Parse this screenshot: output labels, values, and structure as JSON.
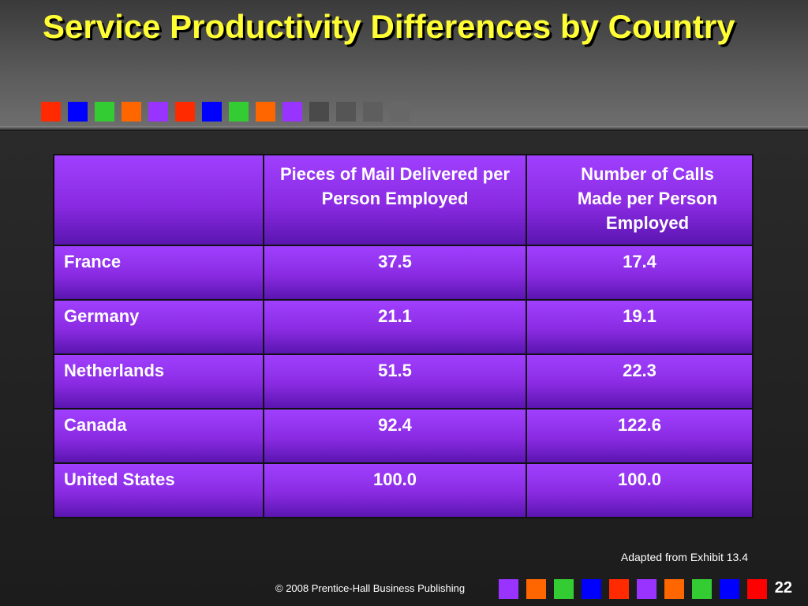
{
  "title": "Service Productivity Differences by Country",
  "colors": {
    "title": "#ffff33",
    "table_fill": "#8a2be2",
    "background": "#1c1c1c"
  },
  "title_squares": [
    "#ff2a00",
    "#0000ff",
    "#33cc33",
    "#ff6600",
    "#9933ff",
    "#ff2a00",
    "#0000ff",
    "#33cc33",
    "#ff6600",
    "#9933ff",
    "#4a4a4a",
    "#555555",
    "#5e5e5e",
    "#676767"
  ],
  "footer_squares": [
    "#9933ff",
    "#ff6600",
    "#33cc33",
    "#0000ff",
    "#ff2a00",
    "#9933ff",
    "#ff6600",
    "#33cc33",
    "#0000ff",
    "#ff0000"
  ],
  "table": {
    "headers": [
      "",
      "Pieces of Mail Delivered per Person Employed",
      "Number of Calls Made per Person Employed"
    ],
    "rows": [
      [
        "France",
        "37.5",
        "17.4"
      ],
      [
        "Germany",
        "21.1",
        "19.1"
      ],
      [
        "Netherlands",
        "51.5",
        "22.3"
      ],
      [
        "Canada",
        "92.4",
        "122.6"
      ],
      [
        "United States",
        "100.0",
        "100.0"
      ]
    ]
  },
  "source": "Adapted from Exhibit 13.4",
  "copyright": "© 2008 Prentice-Hall Business Publishing",
  "page_number": "22"
}
